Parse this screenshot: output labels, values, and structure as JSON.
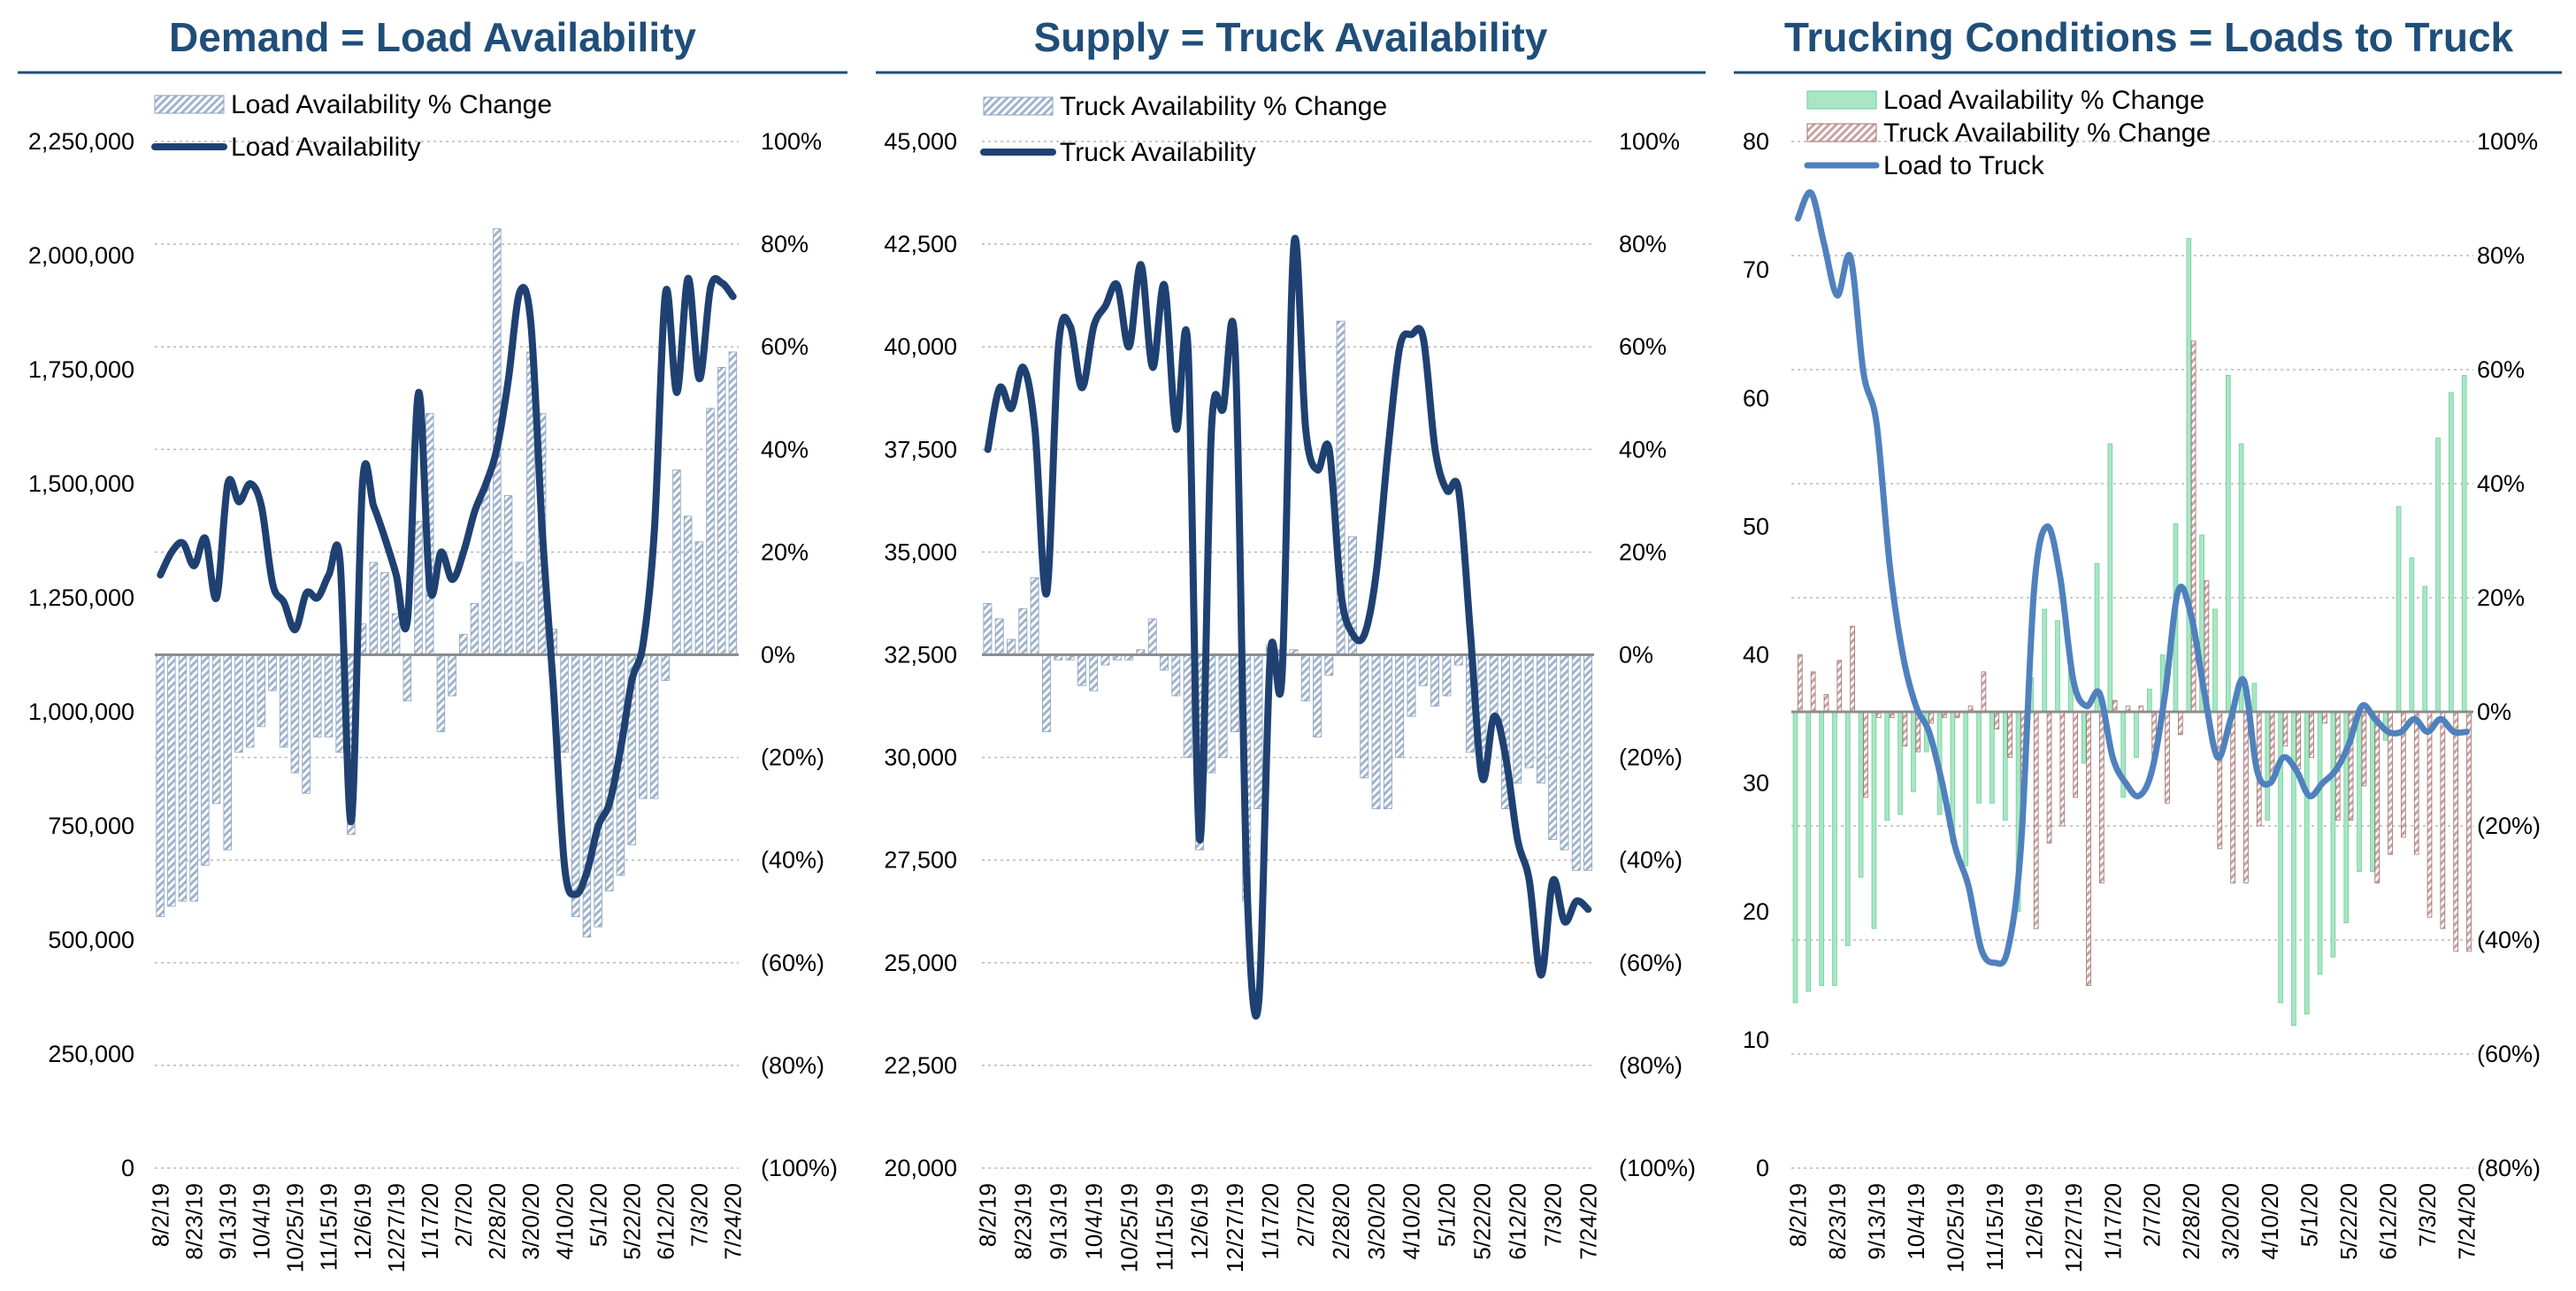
{
  "chart_data": [
    {
      "type": "bar+line",
      "title": "Demand = Load Availability",
      "x": [
        "8/2/19",
        "8/9/19",
        "8/16/19",
        "8/23/19",
        "8/30/19",
        "9/6/19",
        "9/13/19",
        "9/20/19",
        "9/27/19",
        "10/4/19",
        "10/11/19",
        "10/18/19",
        "10/25/19",
        "11/1/19",
        "11/8/19",
        "11/15/19",
        "11/22/19",
        "11/29/19",
        "12/6/19",
        "12/13/19",
        "12/20/19",
        "12/27/19",
        "1/3/20",
        "1/10/20",
        "1/17/20",
        "1/24/20",
        "1/31/20",
        "2/7/20",
        "2/14/20",
        "2/21/20",
        "2/28/20",
        "3/6/20",
        "3/13/20",
        "3/20/20",
        "3/27/20",
        "4/3/20",
        "4/10/20",
        "4/17/20",
        "4/24/20",
        "5/1/20",
        "5/8/20",
        "5/15/20",
        "5/22/20",
        "5/29/20",
        "6/5/20",
        "6/12/20",
        "6/19/20",
        "6/26/20",
        "7/3/20",
        "7/10/20",
        "7/17/20",
        "7/24/20"
      ],
      "xtick_labels": [
        "8/2/19",
        "8/23/19",
        "9/13/19",
        "10/4/19",
        "10/25/19",
        "11/15/19",
        "12/6/19",
        "12/27/19",
        "1/17/20",
        "2/7/20",
        "2/28/20",
        "3/20/20",
        "4/10/20",
        "5/1/20",
        "5/22/20",
        "6/12/20",
        "7/3/20",
        "7/24/20"
      ],
      "y_left": {
        "ylim": [
          0,
          2250000
        ],
        "ticks": [
          "0",
          "250,000",
          "500,000",
          "750,000",
          "1,000,000",
          "1,250,000",
          "1,500,000",
          "1,750,000",
          "2,000,000",
          "2,250,000"
        ]
      },
      "y_right": {
        "ylim": [
          -1.0,
          1.0
        ],
        "ticks": [
          "(100%)",
          "(80%)",
          "(60%)",
          "(40%)",
          "(20%)",
          "0%",
          "20%",
          "40%",
          "60%",
          "80%",
          "100%"
        ]
      },
      "legend": [
        "Load Availability % Change",
        "Load Availability"
      ],
      "series": [
        {
          "name": "Load Availability % Change",
          "type": "bar",
          "axis": "right",
          "color": "#9fb3cc",
          "values": [
            -0.51,
            -0.49,
            -0.48,
            -0.48,
            -0.41,
            -0.29,
            -0.38,
            -0.19,
            -0.18,
            -0.14,
            -0.07,
            -0.18,
            -0.23,
            -0.27,
            -0.16,
            -0.16,
            -0.19,
            -0.35,
            0.06,
            0.18,
            0.16,
            0.08,
            -0.09,
            0.26,
            0.47,
            -0.15,
            -0.08,
            0.04,
            0.1,
            0.33,
            0.83,
            0.31,
            0.18,
            0.59,
            0.47,
            0.05,
            -0.19,
            -0.51,
            -0.55,
            -0.53,
            -0.46,
            -0.43,
            -0.37,
            -0.28,
            -0.28,
            -0.05,
            0.36,
            0.27,
            0.22,
            0.48,
            0.56,
            0.59
          ]
        },
        {
          "name": "Load Availability",
          "type": "line",
          "axis": "left",
          "color": "#1f4172",
          "values": [
            1300000,
            1350000,
            1370000,
            1320000,
            1380000,
            1250000,
            1500000,
            1460000,
            1500000,
            1450000,
            1280000,
            1240000,
            1180000,
            1260000,
            1250000,
            1300000,
            1330000,
            760000,
            1500000,
            1450000,
            1380000,
            1300000,
            1200000,
            1700000,
            1270000,
            1350000,
            1290000,
            1350000,
            1440000,
            1500000,
            1580000,
            1730000,
            1920000,
            1850000,
            1400000,
            1050000,
            660000,
            600000,
            650000,
            750000,
            800000,
            920000,
            1070000,
            1150000,
            1400000,
            1920000,
            1700000,
            1950000,
            1730000,
            1930000,
            1940000,
            1910000
          ]
        }
      ]
    },
    {
      "type": "bar+line",
      "title": "Supply = Truck Availability",
      "x": [
        "8/2/19",
        "8/9/19",
        "8/16/19",
        "8/23/19",
        "8/30/19",
        "9/6/19",
        "9/13/19",
        "9/20/19",
        "9/27/19",
        "10/4/19",
        "10/11/19",
        "10/18/19",
        "10/25/19",
        "11/1/19",
        "11/8/19",
        "11/15/19",
        "11/22/19",
        "11/29/19",
        "12/6/19",
        "12/13/19",
        "12/20/19",
        "12/27/19",
        "1/3/20",
        "1/10/20",
        "1/17/20",
        "1/24/20",
        "1/31/20",
        "2/7/20",
        "2/14/20",
        "2/21/20",
        "2/28/20",
        "3/6/20",
        "3/13/20",
        "3/20/20",
        "3/27/20",
        "4/3/20",
        "4/10/20",
        "4/17/20",
        "4/24/20",
        "5/1/20",
        "5/8/20",
        "5/15/20",
        "5/22/20",
        "5/29/20",
        "6/5/20",
        "6/12/20",
        "6/19/20",
        "6/26/20",
        "7/3/20",
        "7/10/20",
        "7/17/20",
        "7/24/20"
      ],
      "xtick_labels": [
        "8/2/19",
        "8/23/19",
        "9/13/19",
        "10/4/19",
        "10/25/19",
        "11/15/19",
        "12/6/19",
        "12/27/19",
        "1/17/20",
        "2/7/20",
        "2/28/20",
        "3/20/20",
        "4/10/20",
        "5/1/20",
        "5/22/20",
        "6/12/20",
        "7/3/20",
        "7/24/20"
      ],
      "y_left": {
        "ylim": [
          20000,
          45000
        ],
        "ticks": [
          "20,000",
          "22,500",
          "25,000",
          "27,500",
          "30,000",
          "32,500",
          "35,000",
          "37,500",
          "40,000",
          "42,500",
          "45,000"
        ]
      },
      "y_right": {
        "ylim": [
          -1.0,
          1.0
        ],
        "ticks": [
          "(100%)",
          "(80%)",
          "(60%)",
          "(40%)",
          "(20%)",
          "0%",
          "20%",
          "40%",
          "60%",
          "80%",
          "100%"
        ]
      },
      "legend": [
        "Truck Availability % Change",
        "Truck Availability"
      ],
      "series": [
        {
          "name": "Truck Availability % Change",
          "type": "bar",
          "axis": "right",
          "color": "#9fb3cc",
          "values": [
            0.1,
            0.07,
            0.03,
            0.09,
            0.15,
            -0.15,
            -0.01,
            -0.01,
            -0.06,
            -0.07,
            -0.02,
            -0.01,
            -0.01,
            0.01,
            0.07,
            -0.03,
            -0.08,
            -0.2,
            -0.38,
            -0.23,
            -0.2,
            -0.15,
            -0.48,
            -0.3,
            0.02,
            0.01,
            0.01,
            -0.09,
            -0.16,
            -0.04,
            0.65,
            0.23,
            -0.24,
            -0.3,
            -0.3,
            -0.2,
            -0.12,
            -0.06,
            -0.1,
            -0.08,
            -0.02,
            -0.19,
            -0.19,
            -0.13,
            -0.3,
            -0.25,
            -0.22,
            -0.25,
            -0.36,
            -0.38,
            -0.42,
            -0.42
          ]
        },
        {
          "name": "Truck Availability",
          "type": "line",
          "axis": "left",
          "color": "#1f4172",
          "values": [
            37500,
            39000,
            38500,
            39500,
            38000,
            34000,
            40000,
            40500,
            39000,
            40500,
            41000,
            41500,
            40000,
            42000,
            39500,
            41500,
            38000,
            40000,
            28000,
            38000,
            38500,
            40000,
            27000,
            24000,
            32500,
            32000,
            42500,
            38000,
            37000,
            37500,
            34000,
            33000,
            33000,
            34500,
            37500,
            40000,
            40300,
            40200,
            37500,
            36500,
            36500,
            33000,
            29500,
            31000,
            30000,
            28000,
            27000,
            24700,
            27000,
            26000,
            26500,
            26300
          ]
        }
      ]
    },
    {
      "type": "bar+line",
      "title": "Trucking Conditions = Loads to Truck",
      "x": [
        "8/2/19",
        "8/9/19",
        "8/16/19",
        "8/23/19",
        "8/30/19",
        "9/6/19",
        "9/13/19",
        "9/20/19",
        "9/27/19",
        "10/4/19",
        "10/11/19",
        "10/18/19",
        "10/25/19",
        "11/1/19",
        "11/8/19",
        "11/15/19",
        "11/22/19",
        "11/29/19",
        "12/6/19",
        "12/13/19",
        "12/20/19",
        "12/27/19",
        "1/3/20",
        "1/10/20",
        "1/17/20",
        "1/24/20",
        "1/31/20",
        "2/7/20",
        "2/14/20",
        "2/21/20",
        "2/28/20",
        "3/6/20",
        "3/13/20",
        "3/20/20",
        "3/27/20",
        "4/3/20",
        "4/10/20",
        "4/17/20",
        "4/24/20",
        "5/1/20",
        "5/8/20",
        "5/15/20",
        "5/22/20",
        "5/29/20",
        "6/5/20",
        "6/12/20",
        "6/19/20",
        "6/26/20",
        "7/3/20",
        "7/10/20",
        "7/17/20",
        "7/24/20"
      ],
      "xtick_labels": [
        "8/2/19",
        "8/23/19",
        "9/13/19",
        "10/4/19",
        "10/25/19",
        "11/15/19",
        "12/6/19",
        "12/27/19",
        "1/17/20",
        "2/7/20",
        "2/28/20",
        "3/20/20",
        "4/10/20",
        "5/1/20",
        "5/22/20",
        "6/12/20",
        "7/3/20",
        "7/24/20"
      ],
      "y_left": {
        "ylim": [
          0,
          80
        ],
        "ticks": [
          "0",
          "10",
          "20",
          "30",
          "40",
          "50",
          "60",
          "70",
          "80"
        ]
      },
      "y_right": {
        "ylim": [
          -0.8,
          1.0
        ],
        "ticks": [
          "(80%)",
          "(60%)",
          "(40%)",
          "(20%)",
          "0%",
          "20%",
          "40%",
          "60%",
          "80%",
          "100%"
        ]
      },
      "legend": [
        "Load Availability % Change",
        "Truck Availability % Change",
        "Load to Truck"
      ],
      "series": [
        {
          "name": "Load Availability % Change",
          "type": "bar",
          "axis": "right",
          "color": "#a8e6c4",
          "values": [
            -0.51,
            -0.49,
            -0.48,
            -0.48,
            -0.41,
            -0.29,
            -0.38,
            -0.19,
            -0.18,
            -0.14,
            -0.07,
            -0.18,
            -0.23,
            -0.27,
            -0.16,
            -0.16,
            -0.19,
            -0.35,
            0.06,
            0.18,
            0.16,
            0.08,
            -0.09,
            0.26,
            0.47,
            -0.15,
            -0.08,
            0.04,
            0.1,
            0.33,
            0.83,
            0.31,
            0.18,
            0.59,
            0.47,
            0.05,
            -0.19,
            -0.51,
            -0.55,
            -0.53,
            -0.46,
            -0.43,
            -0.37,
            -0.28,
            -0.28,
            -0.05,
            0.36,
            0.27,
            0.22,
            0.48,
            0.56,
            0.59
          ]
        },
        {
          "name": "Truck Availability % Change",
          "type": "bar",
          "axis": "right",
          "color": "#c9a3a3",
          "values": [
            0.1,
            0.07,
            0.03,
            0.09,
            0.15,
            -0.15,
            -0.01,
            -0.01,
            -0.06,
            -0.07,
            -0.02,
            -0.01,
            -0.01,
            0.01,
            0.07,
            -0.03,
            -0.08,
            -0.2,
            -0.38,
            -0.23,
            -0.2,
            -0.15,
            -0.48,
            -0.3,
            0.02,
            0.01,
            0.01,
            -0.09,
            -0.16,
            -0.04,
            0.65,
            0.23,
            -0.24,
            -0.3,
            -0.3,
            -0.2,
            -0.12,
            -0.06,
            -0.1,
            -0.08,
            -0.02,
            -0.19,
            -0.19,
            -0.13,
            -0.3,
            -0.25,
            -0.22,
            -0.25,
            -0.36,
            -0.38,
            -0.42,
            -0.42
          ]
        },
        {
          "name": "Load to Truck",
          "type": "line",
          "axis": "left",
          "color": "#4f81bd",
          "values": [
            74,
            76,
            72,
            68,
            71,
            62,
            58,
            47,
            40,
            36,
            34,
            30,
            25,
            22,
            17,
            16,
            17,
            25,
            45,
            50,
            46,
            38,
            36,
            37,
            32,
            30,
            29,
            31,
            37,
            45,
            43,
            37,
            32,
            35,
            38,
            31,
            30,
            32,
            31,
            29,
            30,
            31,
            33,
            36,
            35,
            34,
            34,
            35,
            34,
            35,
            34,
            34
          ]
        }
      ]
    }
  ]
}
